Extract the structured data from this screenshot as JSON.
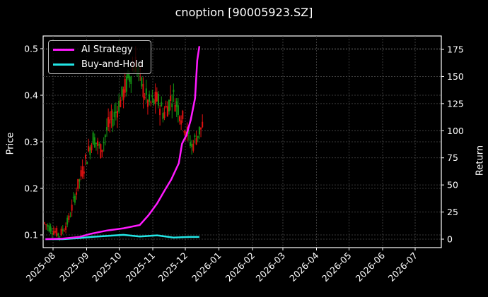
{
  "title": "cnoption [90005923.SZ]",
  "colors": {
    "ai_strategy": "#ff1aff",
    "buy_and_hold": "#22e5e5",
    "candle_up": "#e01010",
    "candle_down": "#139413",
    "background": "#000000",
    "grid": "#555555"
  },
  "legend": {
    "items": [
      {
        "label": "AI Strategy"
      },
      {
        "label": "Buy-and-Hold"
      }
    ]
  },
  "axes": {
    "left_label": "Price",
    "right_label": "Return",
    "left_ticks": [
      "0.1",
      "0.2",
      "0.3",
      "0.4",
      "0.5"
    ],
    "right_ticks": [
      "0",
      "25",
      "50",
      "75",
      "100",
      "125",
      "150",
      "175"
    ],
    "x_ticks": [
      "2025-08",
      "2025-09",
      "2025-10",
      "2025-11",
      "2025-12",
      "2026-01",
      "2026-02",
      "2026-03",
      "2026-04",
      "2026-05",
      "2026-06",
      "2026-07"
    ]
  },
  "chart_data": {
    "type": "line",
    "title": "cnoption [90005923.SZ]",
    "xlabel": "",
    "ylabel": "Price",
    "ylabel_right": "Return",
    "ylim": [
      0.085,
      0.525
    ],
    "ylim_right": [
      -5,
      183
    ],
    "grid": true,
    "legend_position": "upper left",
    "x_ticks": [
      "2025-08",
      "2025-09",
      "2025-10",
      "2025-11",
      "2025-12",
      "2026-01",
      "2026-02",
      "2026-03",
      "2026-04",
      "2026-05",
      "2026-06",
      "2026-07"
    ],
    "series": [
      {
        "name": "AI Strategy",
        "axis": "right",
        "x": [
          "2025-07-25",
          "2025-08-10",
          "2025-08-25",
          "2025-09-05",
          "2025-09-20",
          "2025-10-05",
          "2025-10-20",
          "2025-10-28",
          "2025-11-05",
          "2025-11-12",
          "2025-11-18",
          "2025-11-25",
          "2025-11-28",
          "2025-12-02",
          "2025-12-06",
          "2025-12-10",
          "2025-12-12",
          "2025-12-14"
        ],
        "values": [
          0,
          0.5,
          2,
          5,
          8,
          10,
          13,
          22,
          33,
          45,
          55,
          70,
          88,
          96,
          110,
          130,
          165,
          178
        ]
      },
      {
        "name": "Buy-and-Hold",
        "axis": "right",
        "x": [
          "2025-07-25",
          "2025-08-10",
          "2025-08-25",
          "2025-09-05",
          "2025-09-20",
          "2025-10-05",
          "2025-10-20",
          "2025-11-05",
          "2025-11-20",
          "2025-12-05",
          "2025-12-14"
        ],
        "values": [
          0,
          0,
          1,
          2,
          3,
          4,
          2.5,
          3.5,
          1.5,
          2,
          2
        ]
      },
      {
        "name": "Price (candlestick)",
        "axis": "left",
        "x": [
          "2025-08",
          "2025-09",
          "2025-10",
          "2025-11",
          "2025-12"
        ],
        "values": [
          0.11,
          0.3,
          0.42,
          0.38,
          0.33
        ]
      }
    ]
  }
}
